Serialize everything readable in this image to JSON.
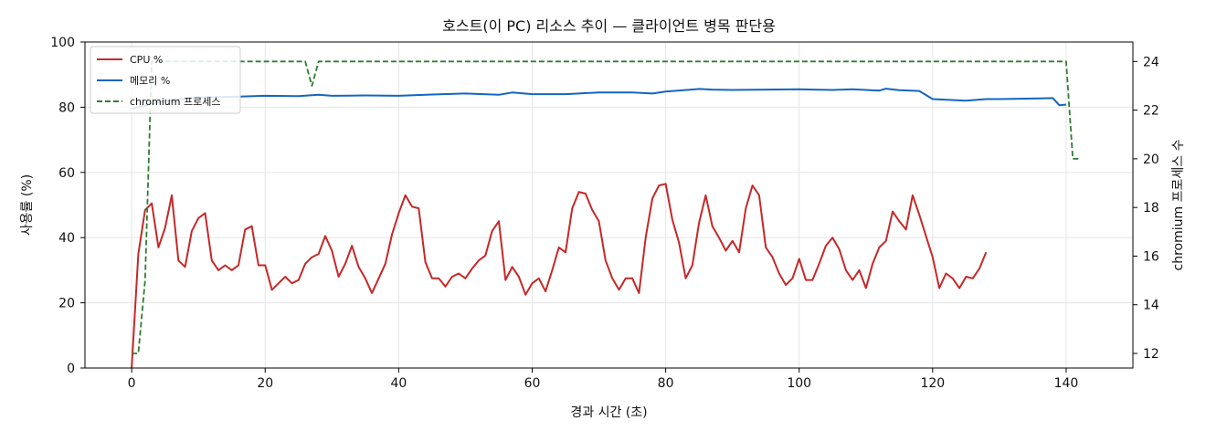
{
  "chart_data": {
    "type": "line",
    "title": "호스트(이 PC) 리소스 추이 — 클라이언트 병목 판단용",
    "xlabel": "경과 시간 (초)",
    "ylabel": "사용률 (%)",
    "y2label": "chromium 프로세스 수",
    "xlim": [
      -7,
      150
    ],
    "ylim": [
      0,
      100
    ],
    "y2lim": [
      11.4,
      24.8
    ],
    "xticks": [
      "0",
      "20",
      "40",
      "60",
      "80",
      "100",
      "120",
      "140"
    ],
    "yticks": [
      "0",
      "20",
      "40",
      "60",
      "80",
      "100"
    ],
    "y2ticks": [
      "12",
      "14",
      "16",
      "18",
      "20",
      "22",
      "24"
    ],
    "grid": true,
    "legend_position": "top-left",
    "series": [
      {
        "name": "CPU %",
        "axis": "left",
        "color": "#c62828",
        "style": "solid",
        "points": [
          [
            0,
            0
          ],
          [
            1,
            35
          ],
          [
            2,
            48.5
          ],
          [
            3,
            50.5
          ],
          [
            4,
            37
          ],
          [
            5,
            43
          ],
          [
            6,
            53
          ],
          [
            7,
            33
          ],
          [
            8,
            31
          ],
          [
            9,
            42
          ],
          [
            10,
            46
          ],
          [
            11,
            47.5
          ],
          [
            12,
            33
          ],
          [
            13,
            30
          ],
          [
            14,
            31.5
          ],
          [
            15,
            30
          ],
          [
            16,
            31.5
          ],
          [
            17,
            42.5
          ],
          [
            18,
            43.5
          ],
          [
            19,
            31.5
          ],
          [
            20,
            31.5
          ],
          [
            21,
            24
          ],
          [
            22,
            26
          ],
          [
            23,
            28
          ],
          [
            24,
            26
          ],
          [
            25,
            27
          ],
          [
            26,
            32
          ],
          [
            27,
            34
          ],
          [
            28,
            35
          ],
          [
            29,
            40.5
          ],
          [
            30,
            36
          ],
          [
            31,
            28
          ],
          [
            32,
            32
          ],
          [
            33,
            37.5
          ],
          [
            34,
            31
          ],
          [
            35,
            27.5
          ],
          [
            36,
            23
          ],
          [
            37,
            27.5
          ],
          [
            38,
            32
          ],
          [
            39,
            41
          ],
          [
            40,
            47.5
          ],
          [
            41,
            53
          ],
          [
            42,
            49.5
          ],
          [
            43,
            49
          ],
          [
            44,
            32.5
          ],
          [
            45,
            27.5
          ],
          [
            46,
            27.5
          ],
          [
            47,
            25
          ],
          [
            48,
            28
          ],
          [
            49,
            29
          ],
          [
            50,
            27.5
          ],
          [
            51,
            30.5
          ],
          [
            52,
            33
          ],
          [
            53,
            34.5
          ],
          [
            54,
            42
          ],
          [
            55,
            45
          ],
          [
            56,
            27
          ],
          [
            57,
            31
          ],
          [
            58,
            28
          ],
          [
            59,
            22.5
          ],
          [
            60,
            26
          ],
          [
            61,
            27.5
          ],
          [
            62,
            23.5
          ],
          [
            63,
            30
          ],
          [
            64,
            37
          ],
          [
            65,
            35.5
          ],
          [
            66,
            49
          ],
          [
            67,
            54
          ],
          [
            68,
            53.5
          ],
          [
            69,
            48.5
          ],
          [
            70,
            45
          ],
          [
            71,
            33
          ],
          [
            72,
            27.5
          ],
          [
            73,
            24
          ],
          [
            74,
            27.5
          ],
          [
            75,
            27.5
          ],
          [
            76,
            23
          ],
          [
            77,
            40
          ],
          [
            78,
            52
          ],
          [
            79,
            56
          ],
          [
            80,
            56.5
          ],
          [
            81,
            45.5
          ],
          [
            82,
            38.5
          ],
          [
            83,
            27.5
          ],
          [
            84,
            31.5
          ],
          [
            85,
            44.5
          ],
          [
            86,
            53
          ],
          [
            87,
            43.5
          ],
          [
            88,
            40
          ],
          [
            89,
            36
          ],
          [
            90,
            39
          ],
          [
            91,
            35.5
          ],
          [
            92,
            49
          ],
          [
            93,
            56
          ],
          [
            94,
            53
          ],
          [
            95,
            37
          ],
          [
            96,
            34
          ],
          [
            97,
            29
          ],
          [
            98,
            25.5
          ],
          [
            99,
            27.5
          ],
          [
            100,
            33.5
          ],
          [
            101,
            27
          ],
          [
            102,
            27
          ],
          [
            103,
            32
          ],
          [
            104,
            37.5
          ],
          [
            105,
            40
          ],
          [
            106,
            36.5
          ],
          [
            107,
            30
          ],
          [
            108,
            27
          ],
          [
            109,
            30
          ],
          [
            110,
            24.5
          ],
          [
            111,
            32
          ],
          [
            112,
            37
          ],
          [
            113,
            39
          ],
          [
            114,
            48
          ],
          [
            115,
            45
          ],
          [
            116,
            42.5
          ],
          [
            117,
            53
          ],
          [
            118,
            47
          ],
          [
            119,
            40.5
          ],
          [
            120,
            34
          ],
          [
            121,
            24.5
          ],
          [
            122,
            29
          ],
          [
            123,
            27.5
          ],
          [
            124,
            24.5
          ],
          [
            125,
            28
          ],
          [
            126,
            27.5
          ],
          [
            127,
            30.5
          ],
          [
            128,
            35.5
          ]
        ]
      },
      {
        "name": "메모리 %",
        "axis": "left",
        "color": "#1565c0",
        "style": "solid",
        "points": [
          [
            0,
            79.5
          ],
          [
            2,
            80.5
          ],
          [
            5,
            82
          ],
          [
            10,
            83
          ],
          [
            15,
            83.2
          ],
          [
            20,
            83.5
          ],
          [
            25,
            83.4
          ],
          [
            28,
            83.8
          ],
          [
            30,
            83.5
          ],
          [
            35,
            83.6
          ],
          [
            40,
            83.5
          ],
          [
            45,
            83.9
          ],
          [
            50,
            84.2
          ],
          [
            55,
            83.8
          ],
          [
            57,
            84.5
          ],
          [
            60,
            84
          ],
          [
            65,
            84
          ],
          [
            70,
            84.5
          ],
          [
            75,
            84.5
          ],
          [
            78,
            84.2
          ],
          [
            80,
            84.8
          ],
          [
            85,
            85.6
          ],
          [
            87,
            85.4
          ],
          [
            90,
            85.3
          ],
          [
            95,
            85.4
          ],
          [
            100,
            85.5
          ],
          [
            105,
            85.3
          ],
          [
            108,
            85.5
          ],
          [
            110,
            85.3
          ],
          [
            112,
            85.1
          ],
          [
            113,
            85.7
          ],
          [
            115,
            85.2
          ],
          [
            118,
            85
          ],
          [
            120,
            82.5
          ],
          [
            125,
            82
          ],
          [
            128,
            82.5
          ],
          [
            130,
            82.5
          ],
          [
            133,
            82.6
          ],
          [
            136,
            82.7
          ],
          [
            138,
            82.8
          ],
          [
            139,
            80.6
          ],
          [
            140,
            80.8
          ]
        ]
      },
      {
        "name": "chromium 프로세스",
        "axis": "right",
        "color": "#2e7d32",
        "style": "dashed",
        "points": [
          [
            0,
            12
          ],
          [
            1,
            12
          ],
          [
            2,
            15
          ],
          [
            3,
            24
          ],
          [
            26,
            24
          ],
          [
            27,
            23
          ],
          [
            28,
            24
          ],
          [
            140,
            24
          ],
          [
            141,
            20
          ],
          [
            142,
            20
          ]
        ]
      }
    ]
  }
}
